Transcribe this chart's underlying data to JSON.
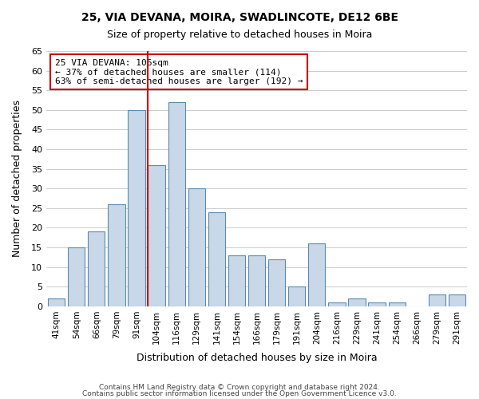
{
  "title": "25, VIA DEVANA, MOIRA, SWADLINCOTE, DE12 6BE",
  "subtitle": "Size of property relative to detached houses in Moira",
  "xlabel": "Distribution of detached houses by size in Moira",
  "ylabel": "Number of detached properties",
  "bin_labels": [
    "41sqm",
    "54sqm",
    "66sqm",
    "79sqm",
    "91sqm",
    "104sqm",
    "116sqm",
    "129sqm",
    "141sqm",
    "154sqm",
    "166sqm",
    "179sqm",
    "191sqm",
    "204sqm",
    "216sqm",
    "229sqm",
    "241sqm",
    "254sqm",
    "266sqm",
    "279sqm",
    "291sqm"
  ],
  "bar_heights": [
    2,
    15,
    19,
    26,
    50,
    36,
    52,
    30,
    24,
    13,
    13,
    12,
    5,
    16,
    1,
    2,
    1,
    1,
    0,
    3,
    3
  ],
  "bar_color": "#c8d8e8",
  "bar_edge_color": "#5a8ab0",
  "grid_color": "#cccccc",
  "vline_x": 5,
  "vline_color": "#cc0000",
  "annotation_title": "25 VIA DEVANA: 106sqm",
  "annotation_line1": "← 37% of detached houses are smaller (114)",
  "annotation_line2": "63% of semi-detached houses are larger (192) →",
  "annotation_box_color": "#ffffff",
  "annotation_box_edge": "#cc0000",
  "ylim": [
    0,
    65
  ],
  "yticks": [
    0,
    5,
    10,
    15,
    20,
    25,
    30,
    35,
    40,
    45,
    50,
    55,
    60,
    65
  ],
  "footer1": "Contains HM Land Registry data © Crown copyright and database right 2024.",
  "footer2": "Contains public sector information licensed under the Open Government Licence v3.0."
}
